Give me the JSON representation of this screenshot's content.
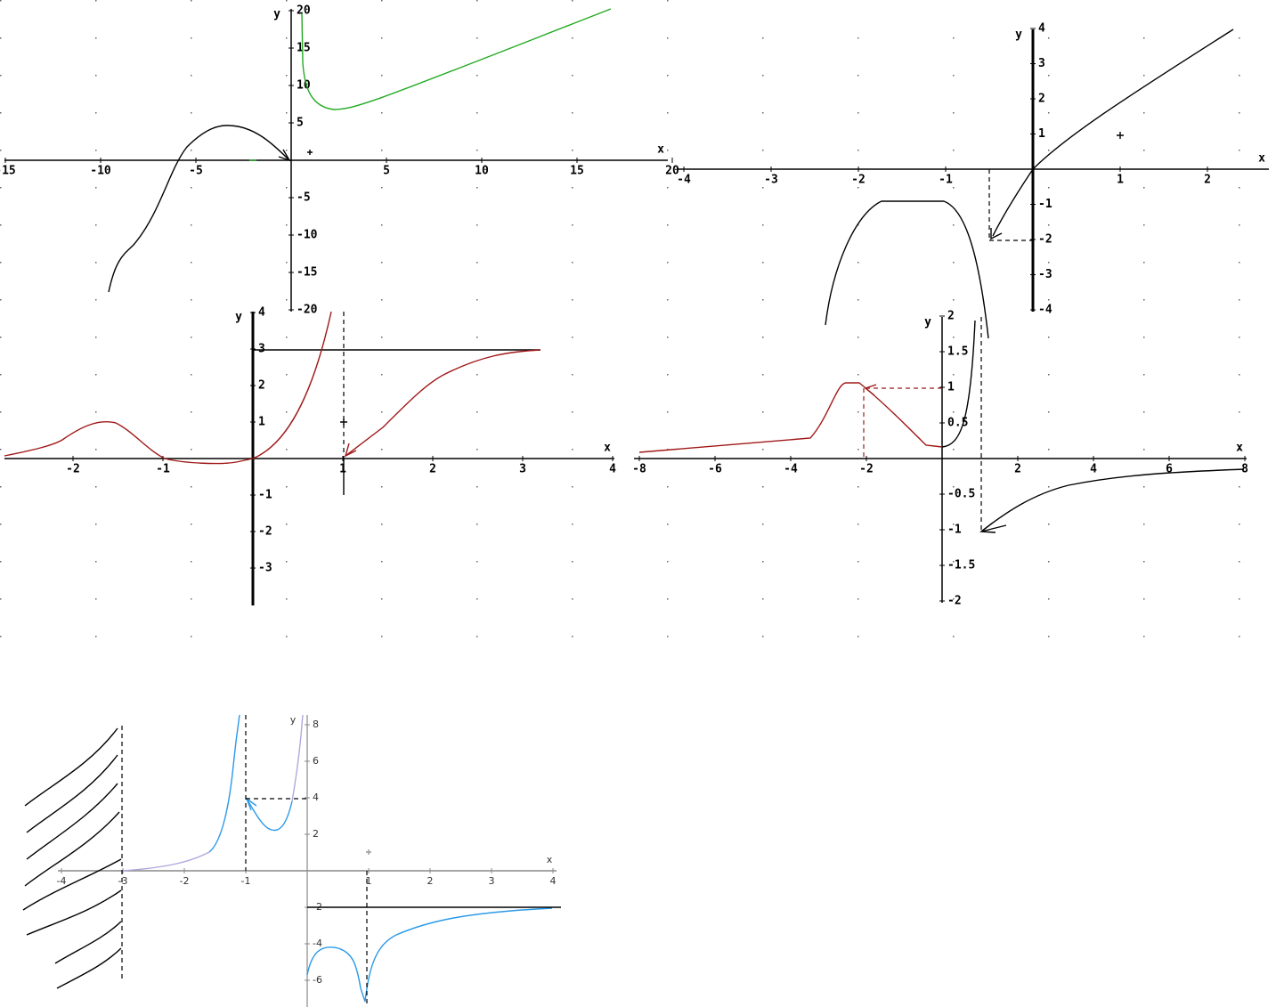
{
  "graphs": [
    {
      "x_label": "x",
      "y_label": "y",
      "xticks": [
        -15,
        -10,
        -5,
        5,
        10,
        15,
        20
      ],
      "yticks": [
        -20,
        -15,
        -10,
        -5,
        5,
        10,
        15,
        20
      ]
    },
    {
      "x_label": "x",
      "y_label": "y",
      "xticks": [
        -4,
        -3,
        -2,
        -1,
        1,
        2
      ],
      "yticks": [
        -4,
        -3,
        -2,
        -1,
        1,
        2,
        3,
        4
      ]
    },
    {
      "x_label": "x",
      "y_label": "y",
      "xticks": [
        -2,
        -1,
        1,
        2,
        3,
        4
      ],
      "yticks": [
        -3,
        -2,
        -1,
        1,
        2,
        3,
        4
      ]
    },
    {
      "x_label": "x",
      "y_label": "y",
      "xticks": [
        -8,
        -6,
        -4,
        -2,
        2,
        4,
        6,
        8
      ],
      "yticks": [
        -2,
        -1.5,
        -1,
        -0.5,
        0.5,
        1,
        1.5,
        2
      ]
    },
    {
      "x_label": "x",
      "y_label": "y",
      "xticks": [
        -4,
        -3,
        -2,
        -1,
        1,
        2,
        3,
        4
      ],
      "yticks": [
        -6,
        -4,
        -2,
        2,
        4,
        6,
        8
      ]
    }
  ]
}
